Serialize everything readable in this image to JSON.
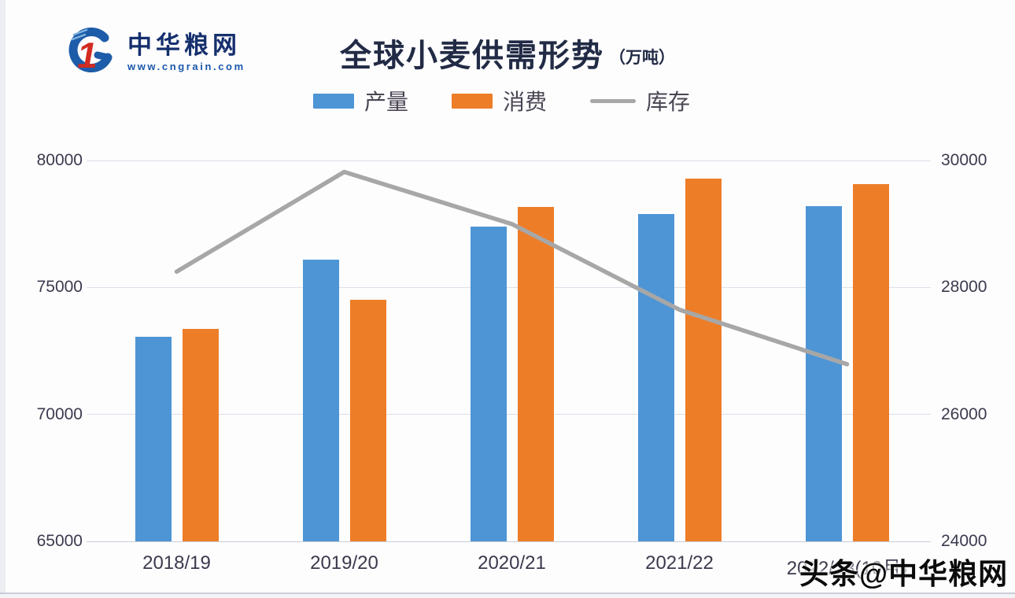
{
  "logo": {
    "brand": "中华粮网",
    "url": "www.cngrain.com",
    "mark_blue": "#1d5ca8",
    "mark_red": "#d22b20"
  },
  "header": {
    "title": "全球小麦供需形势",
    "unit": "（万吨）"
  },
  "legend": {
    "items": [
      {
        "label": "产量",
        "type": "bar",
        "color": "#4d95d5"
      },
      {
        "label": "消费",
        "type": "bar",
        "color": "#ee7d28"
      },
      {
        "label": "库存",
        "type": "line",
        "color": "#a7a7a7"
      }
    ]
  },
  "watermark": {
    "text": "头条@中华粮网"
  },
  "chart_data": {
    "type": "bar",
    "subtype": "grouped bars with secondary-axis line",
    "title": "全球小麦供需形势",
    "unit_label": "万吨",
    "categories": [
      "2018/19",
      "2019/20",
      "2020/21",
      "2021/22",
      "2022/23(10月)"
    ],
    "series": [
      {
        "name": "产量",
        "type": "bar",
        "axis": "left",
        "color": "#4d95d5",
        "values": [
          73060,
          76100,
          77400,
          77890,
          78200
        ]
      },
      {
        "name": "消费",
        "type": "bar",
        "axis": "left",
        "color": "#ee7d28",
        "values": [
          73370,
          74510,
          78170,
          79290,
          79070
        ]
      },
      {
        "name": "库存",
        "type": "line",
        "axis": "right",
        "color": "#a7a7a7",
        "values": [
          28250,
          29820,
          29000,
          27650,
          26790
        ]
      }
    ],
    "left_axis": {
      "min": 65000,
      "max": 80000,
      "ticks": [
        80000,
        75000,
        70000,
        65000
      ]
    },
    "right_axis": {
      "min": 24000,
      "max": 30000,
      "ticks": [
        30000,
        28000,
        26000,
        24000
      ]
    },
    "grid": true,
    "legend_position": "top"
  }
}
